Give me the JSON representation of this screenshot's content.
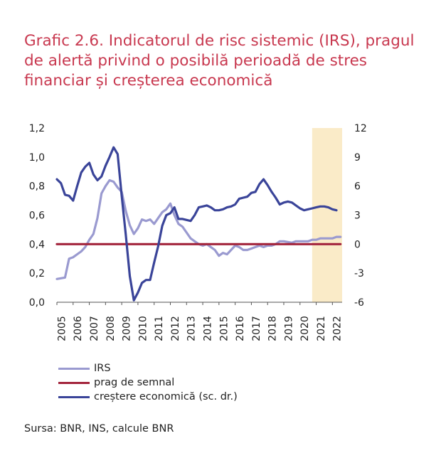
{
  "title_lines": [
    "Grafic 2.6. Indicatorul de risc sistemic (IRS), pragul",
    "de alertă privind o posibilă perioadă de stres",
    "financiar și creșterea economică"
  ],
  "source": "Sursa: BNR, INS, calcule BNR",
  "colors": {
    "irs": "#9a9ad0",
    "prag": "#a3243c",
    "crestere": "#3a4499",
    "shade": "#faebc8"
  },
  "chart_data": {
    "type": "line",
    "x_ticks": [
      "2005",
      "2006",
      "2007",
      "2008",
      "2009",
      "2010",
      "2011",
      "2012",
      "2013",
      "2014",
      "2015",
      "2016",
      "2017",
      "2018",
      "2019",
      "2020",
      "2021",
      "2022"
    ],
    "y_left": {
      "range": [
        0,
        1.2
      ],
      "ticks": [
        "0,0",
        "0,2",
        "0,4",
        "0,6",
        "0,8",
        "1,0",
        "1,2"
      ]
    },
    "y_right": {
      "range": [
        -6,
        12
      ],
      "ticks": [
        "-6",
        "-3",
        "0",
        "3",
        "6",
        "9",
        "12"
      ]
    },
    "shaded_region": {
      "x_start": 2020.75,
      "x_end": 2022.6
    },
    "series": [
      {
        "name": "IRS",
        "axis": "left",
        "x": [
          2005.0,
          2005.5,
          2005.75,
          2006.0,
          2006.5,
          2006.75,
          2007.0,
          2007.25,
          2007.5,
          2007.75,
          2008.0,
          2008.25,
          2008.5,
          2008.75,
          2009.0,
          2009.25,
          2009.5,
          2009.75,
          2010.0,
          2010.25,
          2010.5,
          2010.75,
          2011.0,
          2011.25,
          2011.5,
          2011.75,
          2012.0,
          2012.25,
          2012.5,
          2012.75,
          2013.0,
          2013.25,
          2013.5,
          2013.75,
          2014.0,
          2014.25,
          2014.5,
          2014.75,
          2015.0,
          2015.25,
          2015.5,
          2015.75,
          2016.0,
          2016.25,
          2016.5,
          2016.75,
          2017.0,
          2017.25,
          2017.5,
          2017.75,
          2018.0,
          2018.25,
          2018.5,
          2018.75,
          2019.0,
          2019.5,
          2019.75,
          2020.0,
          2020.25,
          2020.5,
          2020.75,
          2021.0,
          2021.25,
          2021.5,
          2021.75,
          2022.0,
          2022.25,
          2022.5
        ],
        "values": [
          0.16,
          0.17,
          0.3,
          0.31,
          0.35,
          0.38,
          0.43,
          0.47,
          0.58,
          0.75,
          0.8,
          0.84,
          0.83,
          0.79,
          0.76,
          0.63,
          0.53,
          0.47,
          0.51,
          0.57,
          0.56,
          0.57,
          0.54,
          0.58,
          0.62,
          0.64,
          0.68,
          0.6,
          0.54,
          0.52,
          0.48,
          0.44,
          0.42,
          0.4,
          0.39,
          0.4,
          0.38,
          0.36,
          0.32,
          0.34,
          0.33,
          0.36,
          0.39,
          0.38,
          0.36,
          0.36,
          0.37,
          0.38,
          0.39,
          0.38,
          0.39,
          0.39,
          0.4,
          0.42,
          0.42,
          0.41,
          0.42,
          0.42,
          0.42,
          0.42,
          0.43,
          0.43,
          0.44,
          0.44,
          0.44,
          0.44,
          0.45,
          0.45
        ]
      },
      {
        "name": "prag de semnal",
        "axis": "left",
        "x": [
          2005.0,
          2022.5
        ],
        "values": [
          0.4,
          0.4
        ]
      },
      {
        "name": "creștere economică (sc. dr.)",
        "axis": "right",
        "x": [
          2005.0,
          2005.25,
          2005.5,
          2005.75,
          2006.0,
          2006.25,
          2006.5,
          2006.75,
          2007.0,
          2007.25,
          2007.5,
          2007.75,
          2008.0,
          2008.25,
          2008.5,
          2008.75,
          2009.0,
          2009.25,
          2009.5,
          2009.75,
          2010.0,
          2010.25,
          2010.5,
          2010.75,
          2011.0,
          2011.25,
          2011.5,
          2011.75,
          2012.0,
          2012.25,
          2012.5,
          2012.75,
          2013.0,
          2013.25,
          2013.5,
          2013.75,
          2014.0,
          2014.25,
          2014.5,
          2014.75,
          2015.0,
          2015.25,
          2015.5,
          2015.75,
          2016.0,
          2016.25,
          2016.5,
          2016.75,
          2017.0,
          2017.25,
          2017.5,
          2017.75,
          2018.0,
          2018.25,
          2018.5,
          2018.75,
          2019.0,
          2019.25,
          2019.5,
          2019.75,
          2020.0,
          2020.25,
          2020.5,
          2020.75,
          2021.0,
          2021.25,
          2021.5,
          2021.75,
          2022.0,
          2022.25
        ],
        "values": [
          6.7,
          6.3,
          5.1,
          5.0,
          4.5,
          6.0,
          7.4,
          8.0,
          8.4,
          7.2,
          6.6,
          7.0,
          8.1,
          9.0,
          10.0,
          9.3,
          5.0,
          1.0,
          -3.3,
          -5.8,
          -5.0,
          -4.0,
          -3.7,
          -3.7,
          -1.9,
          -0.2,
          1.9,
          3.0,
          3.2,
          3.8,
          2.6,
          2.6,
          2.5,
          2.4,
          3.0,
          3.8,
          3.9,
          4.0,
          3.8,
          3.5,
          3.5,
          3.6,
          3.8,
          3.9,
          4.1,
          4.7,
          4.8,
          4.9,
          5.3,
          5.4,
          6.2,
          6.7,
          6.1,
          5.4,
          4.8,
          4.1,
          4.3,
          4.4,
          4.3,
          4.0,
          3.7,
          3.5,
          3.6,
          3.7,
          3.8,
          3.9,
          3.9,
          3.8,
          3.6,
          3.5
        ]
      }
    ]
  }
}
